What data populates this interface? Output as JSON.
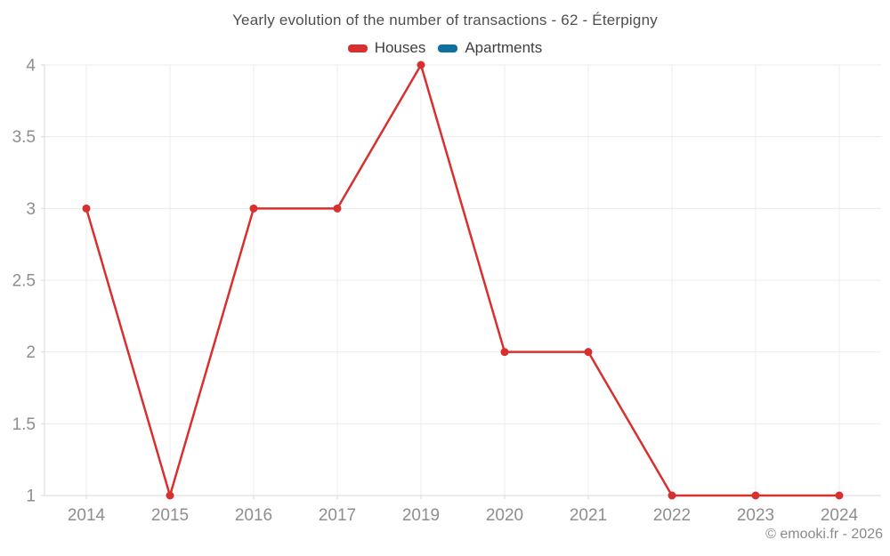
{
  "header": {
    "title": "Yearly evolution of the number of transactions - 62 - Éterpigny"
  },
  "footer": {
    "copyright": "© emooki.fr - 2026"
  },
  "chart_data": {
    "type": "line",
    "title": "Yearly evolution of the number of transactions - 62 - Éterpigny",
    "categories": [
      "2014",
      "2015",
      "2016",
      "2017",
      "2019",
      "2020",
      "2021",
      "2022",
      "2023",
      "2024"
    ],
    "series": [
      {
        "name": "Houses",
        "color": "#d7302f",
        "values": [
          3,
          1,
          3,
          3,
          4,
          2,
          2,
          1,
          1,
          1
        ]
      },
      {
        "name": "Apartments",
        "color": "#0f6f9f",
        "values": []
      }
    ],
    "xlabel": "",
    "ylabel": "",
    "ylim": [
      1,
      4
    ],
    "yticks": [
      1,
      1.5,
      2,
      2.5,
      3,
      3.5,
      4
    ],
    "grid": true,
    "legend_position": "top",
    "marker_radius": 4.5,
    "line_width": 2.5,
    "colors": {
      "gridline": "#ececec",
      "axis_line": "#d9d9d9",
      "tick_label": "#8e8e8e",
      "title_text": "#4e4e4e",
      "legend_text": "#3f3f3f",
      "footer_text": "#8a8a8a"
    }
  }
}
